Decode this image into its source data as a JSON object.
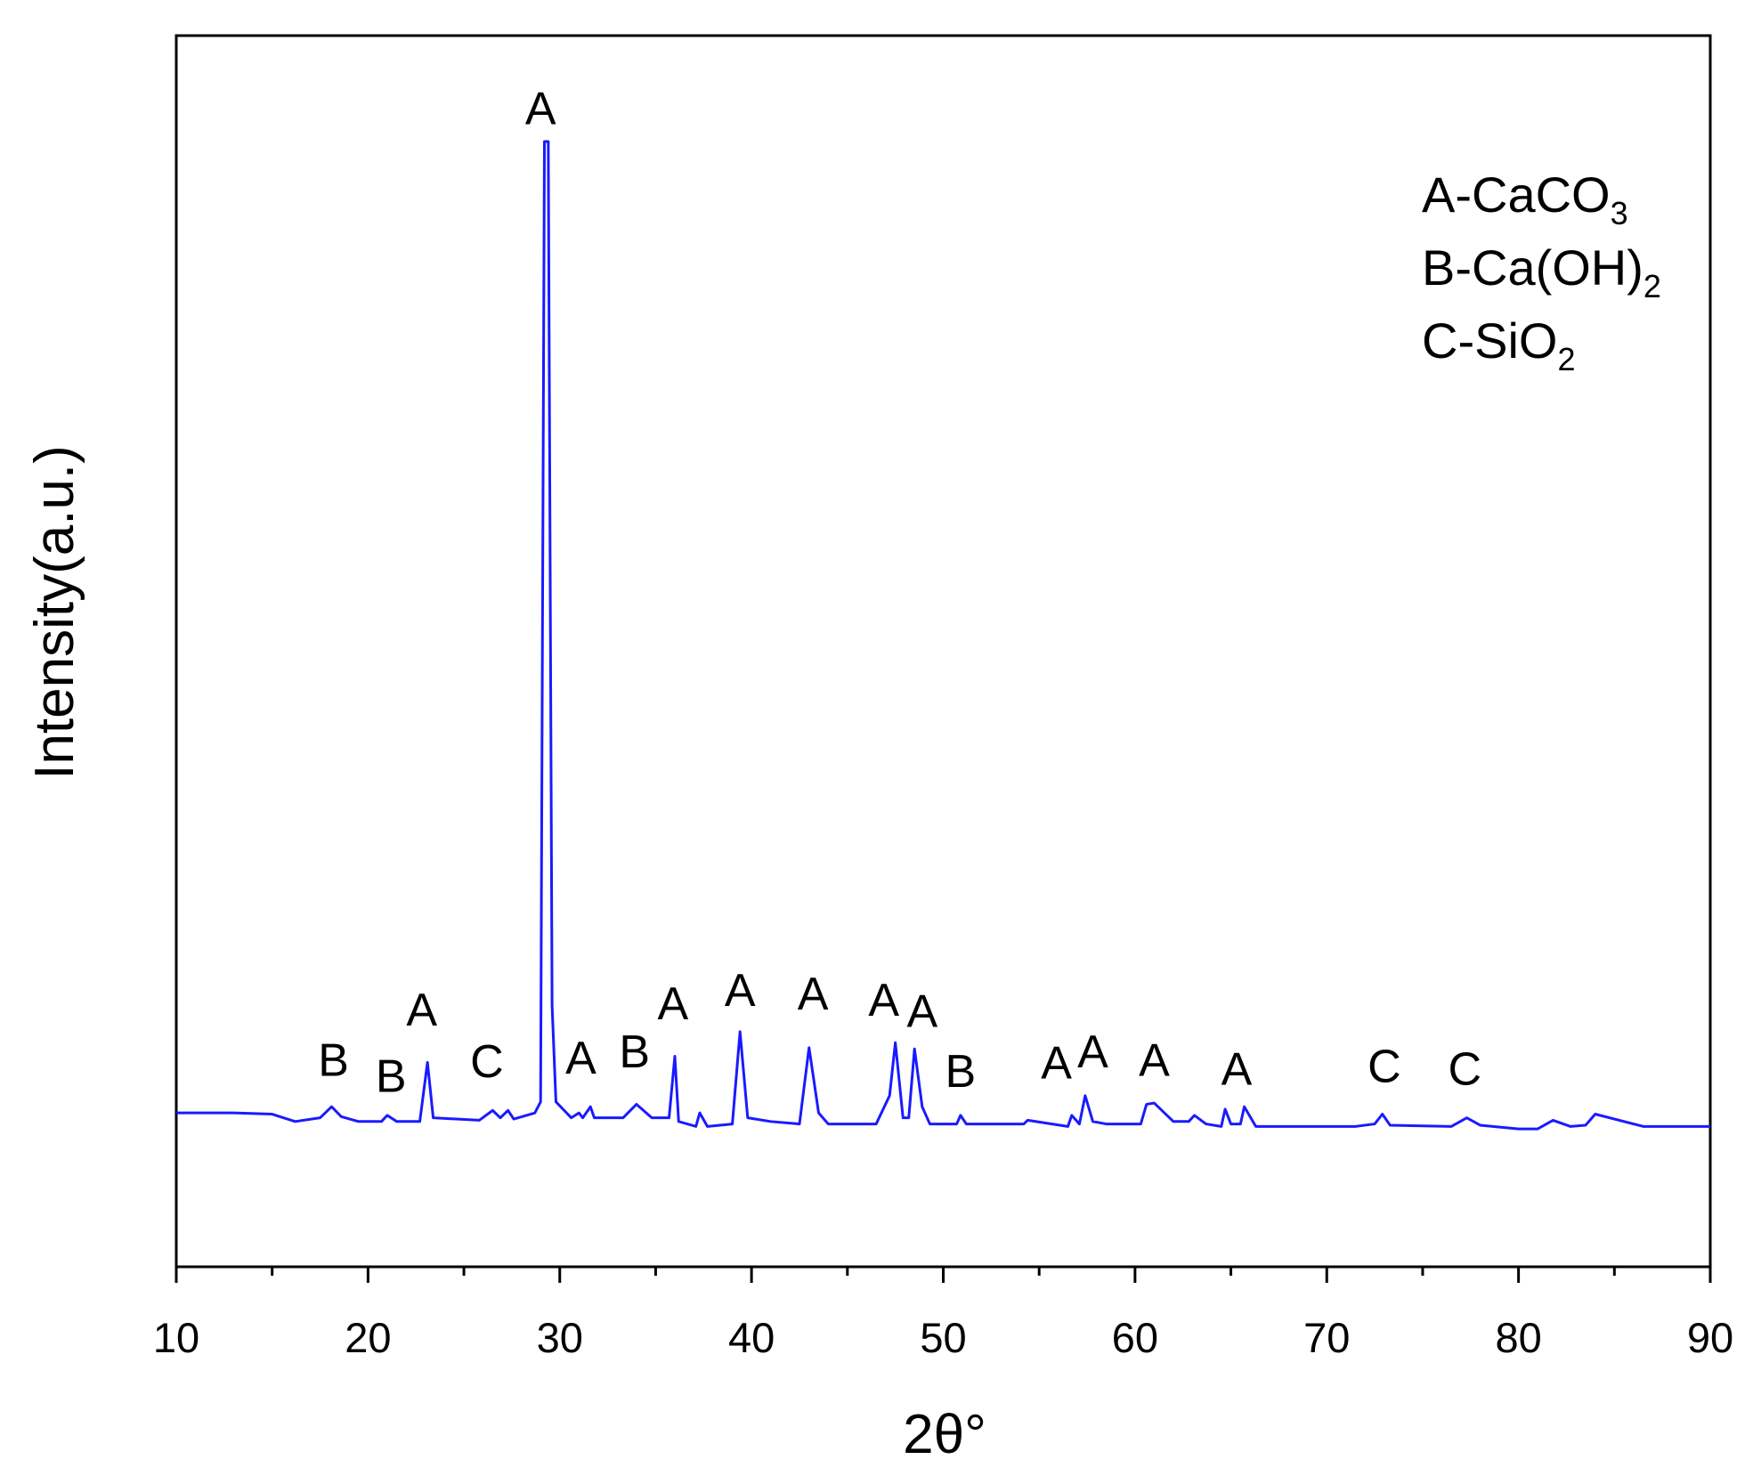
{
  "chart_data": {
    "type": "line",
    "x_label": "2θ°",
    "y_label": "Intensity(a.u.)",
    "xlim": [
      10,
      90
    ],
    "ylim": [
      0,
      100
    ],
    "xticks": [
      10,
      20,
      30,
      40,
      50,
      60,
      70,
      80,
      90
    ],
    "xminorticks": [
      15,
      25,
      35,
      45,
      55,
      65,
      75,
      85
    ],
    "series": [
      {
        "color": "#1a1aff",
        "x": [
          10,
          13,
          15,
          16.2,
          17.5,
          18.1,
          18.6,
          19.5,
          20.7,
          21,
          21.5,
          22.7,
          23.1,
          23.4,
          25.8,
          26.5,
          26.9,
          27.3,
          27.6,
          28.7,
          29.0,
          29.2,
          29.4,
          29.6,
          29.8,
          30.6,
          31.0,
          31.2,
          31.6,
          31.8,
          33.3,
          34.0,
          34.8,
          35.7,
          36.0,
          36.2,
          37.1,
          37.3,
          37.7,
          39.0,
          39.4,
          39.8,
          41.0,
          42.5,
          43.0,
          43.5,
          44.0,
          46.5,
          47.2,
          47.5,
          47.9,
          48.2,
          48.5,
          48.9,
          49.3,
          50.7,
          50.9,
          51.2,
          54.2,
          54.4,
          56.5,
          56.7,
          57.1,
          57.4,
          57.8,
          58.5,
          60.3,
          60.6,
          61.0,
          62.0,
          62.8,
          63.1,
          63.7,
          64.5,
          64.7,
          65.0,
          65.5,
          65.7,
          66.3,
          69.0,
          70.0,
          71.5,
          72.5,
          72.9,
          73.3,
          76.5,
          77.3,
          78.0,
          80.0,
          81.0,
          81.8,
          82.7,
          83.5,
          84.0,
          86.5,
          90
        ],
        "values": [
          12.5,
          12.5,
          12.4,
          11.8,
          12.1,
          13.0,
          12.2,
          11.8,
          11.8,
          12.3,
          11.8,
          11.8,
          16.6,
          12.1,
          11.9,
          12.7,
          12.1,
          12.7,
          12.0,
          12.5,
          13.4,
          91.4,
          91.4,
          21.2,
          13.4,
          12.1,
          12.5,
          12.1,
          13.0,
          12.1,
          12.1,
          13.2,
          12.1,
          12.1,
          17.1,
          11.8,
          11.4,
          12.5,
          11.4,
          11.6,
          19.1,
          12.1,
          11.8,
          11.6,
          17.8,
          12.5,
          11.6,
          11.6,
          13.9,
          18.2,
          12.1,
          12.1,
          17.7,
          13.0,
          11.6,
          11.6,
          12.3,
          11.6,
          11.6,
          11.9,
          11.4,
          12.3,
          11.6,
          13.9,
          11.8,
          11.6,
          11.6,
          13.2,
          13.3,
          11.8,
          11.8,
          12.3,
          11.6,
          11.4,
          12.8,
          11.6,
          11.6,
          13.0,
          11.4,
          11.4,
          11.4,
          11.4,
          11.6,
          12.4,
          11.5,
          11.4,
          12.1,
          11.5,
          11.2,
          11.2,
          11.9,
          11.4,
          11.5,
          12.4,
          11.4,
          11.4
        ]
      }
    ],
    "annotations": [
      {
        "text": "B",
        "x": 18.2,
        "y": 15.5
      },
      {
        "text": "B",
        "x": 21.2,
        "y": 14.2
      },
      {
        "text": "A",
        "x": 22.8,
        "y": 19.6
      },
      {
        "text": "C",
        "x": 26.2,
        "y": 15.4
      },
      {
        "text": "A",
        "x": 29.0,
        "y": 92.8
      },
      {
        "text": "A",
        "x": 31.1,
        "y": 15.7
      },
      {
        "text": "B",
        "x": 33.9,
        "y": 16.2
      },
      {
        "text": "A",
        "x": 35.9,
        "y": 20.1
      },
      {
        "text": "A",
        "x": 39.4,
        "y": 21.2
      },
      {
        "text": "A",
        "x": 43.2,
        "y": 20.9
      },
      {
        "text": "A",
        "x": 46.9,
        "y": 20.4
      },
      {
        "text": "A",
        "x": 48.9,
        "y": 19.5
      },
      {
        "text": "B",
        "x": 50.9,
        "y": 14.6
      },
      {
        "text": "A",
        "x": 55.9,
        "y": 15.3
      },
      {
        "text": "A",
        "x": 57.8,
        "y": 16.2
      },
      {
        "text": "A",
        "x": 61.0,
        "y": 15.5
      },
      {
        "text": "A",
        "x": 65.3,
        "y": 14.8
      },
      {
        "text": "C",
        "x": 73.0,
        "y": 15.0
      },
      {
        "text": "C",
        "x": 77.2,
        "y": 14.8
      }
    ],
    "legend_text": [
      {
        "text": "A-CaCO",
        "sub": "3"
      },
      {
        "text": "B-Ca(OH)",
        "sub": "2"
      },
      {
        "text": "C-SiO",
        "sub": "2"
      }
    ]
  }
}
